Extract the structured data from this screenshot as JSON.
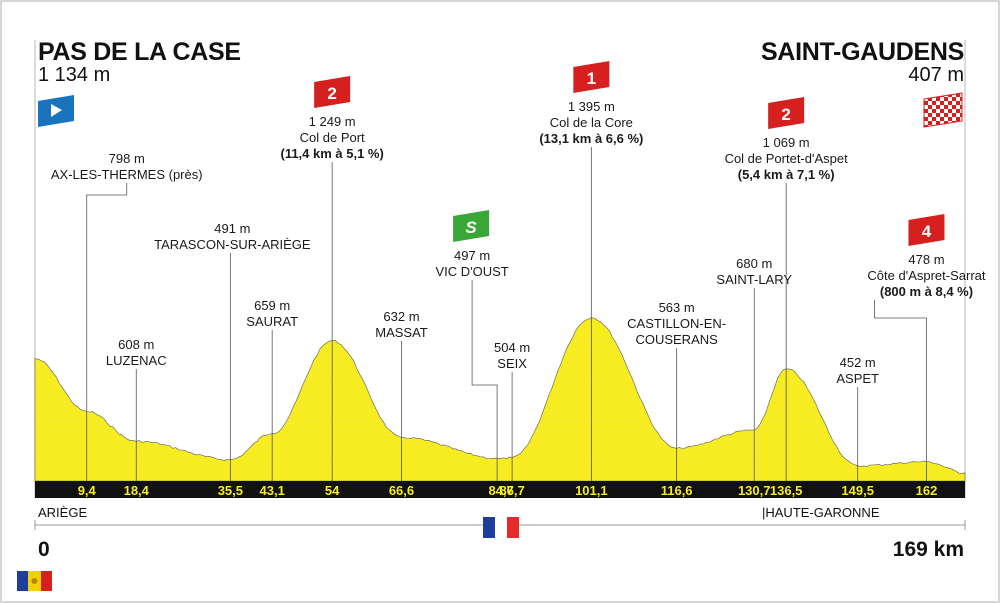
{
  "start": {
    "name": "PAS DE LA CASE",
    "altitude": "1 134 m"
  },
  "finish": {
    "name": "SAINT-GAUDENS",
    "altitude": "407 m"
  },
  "distance": {
    "start": "0",
    "end": "169 km"
  },
  "regions": {
    "left": "ARIÈGE",
    "right": "|HAUTE-GARONNE"
  },
  "colors": {
    "profile": "#f7ec1e",
    "band": "#111111",
    "climb": "#d61f1f",
    "sprint": "#3aa637",
    "start_flag": "#1a74bd"
  },
  "icons": {
    "start": "start-flag-icon",
    "finish": "finish-flag-icon",
    "sprint": "sprint-icon",
    "country": "andorra-flag-icon",
    "france": "france-flag-icon"
  },
  "chart_data": {
    "type": "area",
    "x_label": "",
    "y_label": "",
    "xlim": [
      0,
      169
    ],
    "profile": [
      {
        "km": 0,
        "alt": 1134
      },
      {
        "km": 9.4,
        "alt": 798
      },
      {
        "km": 18.4,
        "alt": 608
      },
      {
        "km": 35.5,
        "alt": 491
      },
      {
        "km": 43.1,
        "alt": 659
      },
      {
        "km": 54,
        "alt": 1249
      },
      {
        "km": 66.6,
        "alt": 632
      },
      {
        "km": 84.7,
        "alt": 497
      },
      {
        "km": 86.7,
        "alt": 504
      },
      {
        "km": 101.1,
        "alt": 1395
      },
      {
        "km": 116.6,
        "alt": 563
      },
      {
        "km": 130.7,
        "alt": 680
      },
      {
        "km": 136.5,
        "alt": 1069
      },
      {
        "km": 149.5,
        "alt": 452
      },
      {
        "km": 162,
        "alt": 478
      },
      {
        "km": 169,
        "alt": 407
      }
    ],
    "ticks": [
      "9,4",
      "18,4",
      "35,5",
      "43,1",
      "54",
      "66,6",
      "84,7",
      "86,7",
      "101,1",
      "116,6",
      "130,7",
      "136,5",
      "149,5",
      "162"
    ],
    "waypoints": [
      {
        "km": 9.4,
        "alt": "798 m",
        "name": "AX-LES-THERMES (près)"
      },
      {
        "km": 18.4,
        "alt": "608 m",
        "name": "LUZENAC"
      },
      {
        "km": 35.5,
        "alt": "491 m",
        "name": "TARASCON-SUR-ARIÈGE"
      },
      {
        "km": 43.1,
        "alt": "659 m",
        "name": "SAURAT"
      },
      {
        "km": 54,
        "alt": "1 249 m",
        "name": "Col de Port",
        "detail": "(11,4 km à 5,1 %)",
        "category": "2"
      },
      {
        "km": 66.6,
        "alt": "632 m",
        "name": "MASSAT"
      },
      {
        "km": 84.7,
        "alt": "497 m",
        "name": "VIC D'OUST",
        "sprint": "S"
      },
      {
        "km": 86.7,
        "alt": "504 m",
        "name": "SEIX"
      },
      {
        "km": 101.1,
        "alt": "1 395 m",
        "name": "Col de la Core",
        "detail": "(13,1 km à 6,6 %)",
        "category": "1"
      },
      {
        "km": 116.6,
        "alt": "563 m",
        "name": "CASTILLON-EN-",
        "name2": "COUSERANS"
      },
      {
        "km": 130.7,
        "alt": "680 m",
        "name": "SAINT-LARY"
      },
      {
        "km": 136.5,
        "alt": "1 069 m",
        "name": "Col de Portet-d'Aspet",
        "detail": "(5,4 km à 7,1 %)",
        "category": "2"
      },
      {
        "km": 149.5,
        "alt": "452 m",
        "name": "ASPET"
      },
      {
        "km": 162,
        "alt": "478 m",
        "name": "Côte d'Aspret-Sarrat",
        "detail": "(800 m à 8,4 %)",
        "category": "4"
      }
    ]
  }
}
